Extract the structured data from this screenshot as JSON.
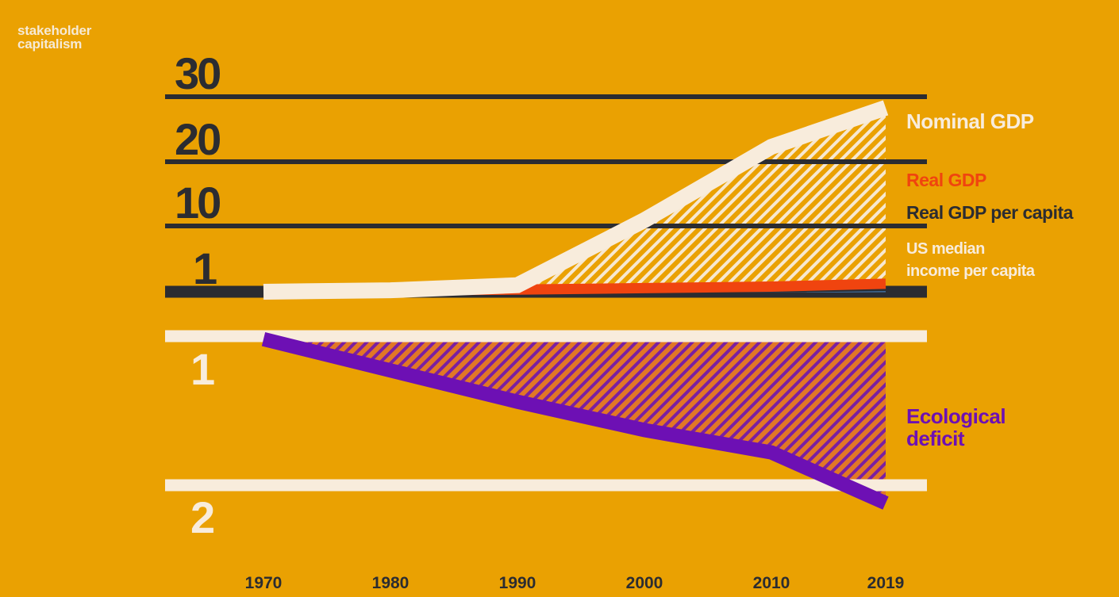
{
  "brand": {
    "line1": "stakeholder",
    "line2": "capitalism"
  },
  "colors": {
    "background": "#eaa102",
    "dark": "#2b2c31",
    "cream": "#f8ecdc",
    "red": "#f0440f",
    "blue": "#4a8fd6",
    "purple": "#6d10b4"
  },
  "chart_data": {
    "type": "line",
    "title": "",
    "x": [
      1970,
      1980,
      1990,
      2000,
      2010,
      2019
    ],
    "x_tick_labels": [
      "1970",
      "1980",
      "1990",
      "2000",
      "2010",
      "2019"
    ],
    "upper_panel": {
      "y_ticks": [
        1,
        10,
        20,
        30
      ],
      "y_tick_labels": [
        "1",
        "10",
        "20",
        "30"
      ],
      "series": [
        {
          "name": "Nominal GDP",
          "color": "#f8ecdc",
          "values": [
            1,
            1.2,
            1.9,
            10.9,
            22.3,
            28.3
          ]
        },
        {
          "name": "Real GDP",
          "color": "#f0440f",
          "values": [
            1,
            1.2,
            1.3,
            1.5,
            1.7,
            2.1
          ]
        },
        {
          "name": "Real GDP per capita",
          "color": "#2b2c31",
          "values": [
            1,
            1.1,
            1.15,
            1.25,
            1.35,
            1.5
          ]
        },
        {
          "name": "US median income per capita",
          "color": "#4a8fd6",
          "values": [
            1,
            1.04,
            1.07,
            1.1,
            1.13,
            1.17
          ]
        }
      ]
    },
    "lower_panel": {
      "y_ticks": [
        1,
        2
      ],
      "y_tick_labels": [
        "1",
        "2"
      ],
      "series": [
        {
          "name": "Ecological deficit",
          "color": "#6d10b4",
          "values": [
            1.02,
            1.23,
            1.44,
            1.63,
            1.78,
            2.12
          ]
        }
      ]
    },
    "series_labels": [
      {
        "lines": [
          "Nominal GDP"
        ],
        "color": "#f8ecdc"
      },
      {
        "lines": [
          "Real GDP"
        ],
        "color": "#f0440f"
      },
      {
        "lines": [
          "Real GDP per capita"
        ],
        "color": "#2b2c31"
      },
      {
        "lines": [
          "US median",
          "income per capita"
        ],
        "color": "#f8ecdc"
      },
      {
        "lines": [
          "Ecological",
          "deficit"
        ],
        "color": "#6d10b4"
      }
    ]
  }
}
